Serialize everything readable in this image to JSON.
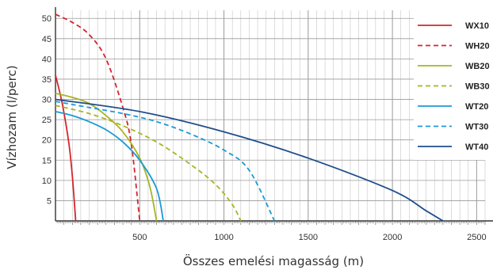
{
  "chart_data": {
    "type": "line",
    "title": "",
    "xlabel": "Összes emelési magasság (m)",
    "ylabel": "Vízhozam (l/perc)",
    "xlim": [
      0,
      2550
    ],
    "ylim": [
      0,
      52
    ],
    "x_ticks": [
      500,
      1000,
      1500,
      2000,
      2500
    ],
    "x_tick_labels": [
      "500",
      "1000",
      "1500",
      "2000",
      "2500"
    ],
    "y_ticks": [
      5,
      10,
      15,
      20,
      25,
      30,
      35,
      40,
      45,
      50
    ],
    "y_tick_labels": [
      "5",
      "10",
      "15",
      "20",
      "25",
      "30",
      "35",
      "40",
      "45",
      "50"
    ],
    "grid": true,
    "legend_position": "right",
    "series": [
      {
        "name": "WX10",
        "color": "#d7242d",
        "dash": false,
        "x": [
          0,
          40,
          80,
          100,
          120
        ],
        "y": [
          36,
          29,
          19,
          11,
          0
        ]
      },
      {
        "name": "WH20",
        "color": "#d7242d",
        "dash": true,
        "x": [
          0,
          100,
          200,
          300,
          400,
          450,
          500
        ],
        "y": [
          51,
          49,
          46,
          40,
          28,
          19,
          0
        ]
      },
      {
        "name": "WB20",
        "color": "#a7b523",
        "dash": false,
        "x": [
          0,
          100,
          200,
          300,
          400,
          500,
          560,
          600
        ],
        "y": [
          31.5,
          30.5,
          29,
          26,
          22,
          15.5,
          8.5,
          0
        ]
      },
      {
        "name": "WB30",
        "color": "#a7b523",
        "dash": true,
        "x": [
          0,
          200,
          400,
          600,
          800,
          950,
          1050,
          1100
        ],
        "y": [
          28.5,
          26.5,
          23.5,
          19.5,
          14,
          9,
          4,
          0
        ]
      },
      {
        "name": "WT20",
        "color": "#1b9ad6",
        "dash": false,
        "x": [
          0,
          100,
          200,
          300,
          400,
          500,
          600,
          640
        ],
        "y": [
          27,
          26,
          24.5,
          22.5,
          19.5,
          15,
          8,
          0
        ]
      },
      {
        "name": "WT30",
        "color": "#1b9ad6",
        "dash": true,
        "x": [
          0,
          200,
          400,
          600,
          800,
          1000,
          1150,
          1300
        ],
        "y": [
          29.5,
          28,
          26.5,
          24.5,
          21.5,
          17.5,
          12.5,
          0
        ]
      },
      {
        "name": "WT40",
        "color": "#1f4e8c",
        "dash": false,
        "x": [
          0,
          500,
          1000,
          1500,
          2000,
          2200,
          2300
        ],
        "y": [
          30,
          27,
          22,
          15.5,
          7.5,
          2.5,
          0
        ]
      }
    ]
  }
}
